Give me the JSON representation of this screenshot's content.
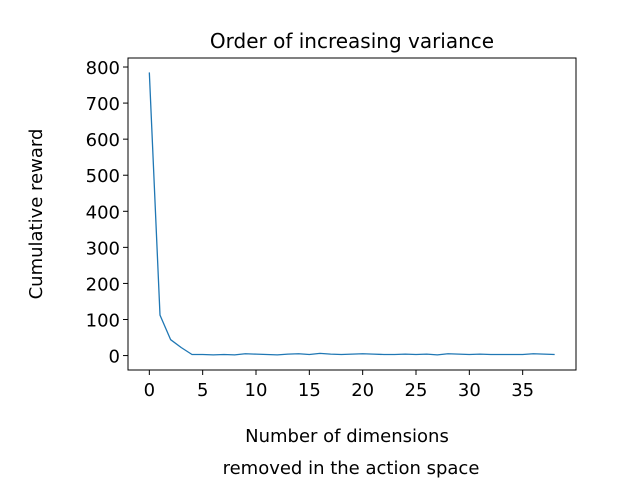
{
  "chart_data": {
    "type": "line",
    "title": "Order of increasing variance",
    "xlabel_lines": [
      "Number of dimensions",
      "removed in the action space"
    ],
    "ylabel": "Cumulative reward",
    "xlim": [
      -2,
      40
    ],
    "ylim": [
      -40,
      825
    ],
    "xticks": [
      0,
      5,
      10,
      15,
      20,
      25,
      30,
      35
    ],
    "yticks": [
      0,
      100,
      200,
      300,
      400,
      500,
      600,
      700,
      800
    ],
    "grid": false,
    "series": [
      {
        "color": "#1f77b4",
        "x": [
          0,
          1,
          2,
          3,
          4,
          5,
          6,
          7,
          8,
          9,
          10,
          11,
          12,
          13,
          14,
          15,
          16,
          17,
          18,
          19,
          20,
          21,
          22,
          23,
          24,
          25,
          26,
          27,
          28,
          29,
          30,
          31,
          32,
          33,
          34,
          35,
          36,
          37,
          38
        ],
        "y": [
          785,
          112,
          44,
          22,
          3,
          3,
          2,
          3,
          2,
          5,
          4,
          3,
          2,
          4,
          5,
          3,
          6,
          4,
          3,
          4,
          5,
          4,
          3,
          3,
          4,
          3,
          4,
          2,
          5,
          4,
          3,
          4,
          3,
          3,
          3,
          3,
          5,
          4,
          3
        ]
      }
    ]
  }
}
